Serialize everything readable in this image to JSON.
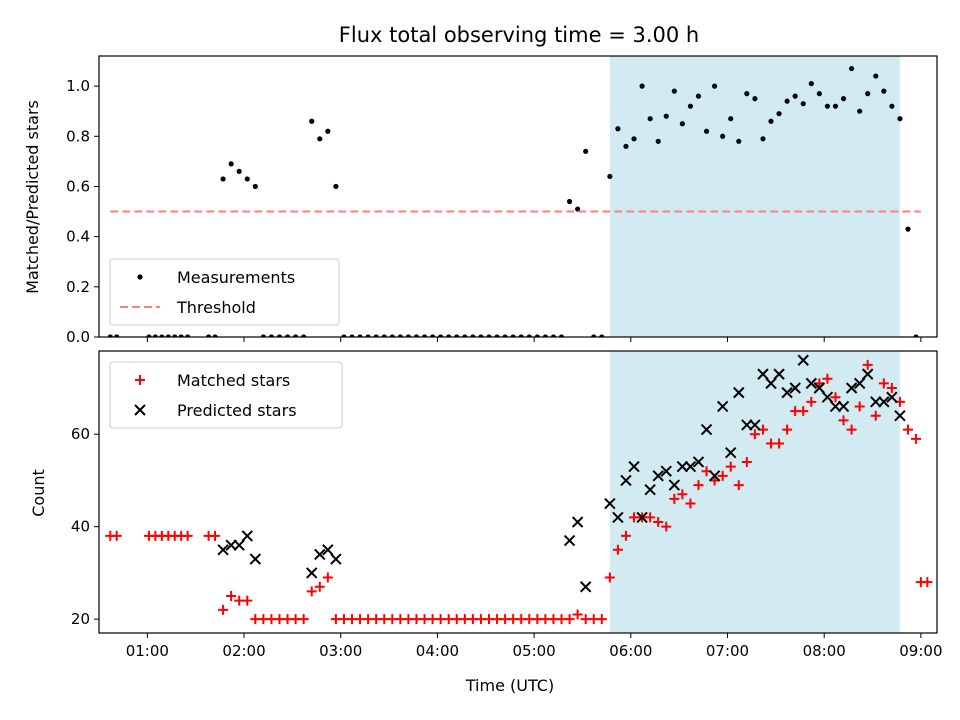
{
  "chart_data": [
    {
      "type": "scatter",
      "title": "Flux total observing time = 3.00 h",
      "xlabel": "",
      "ylabel": "Matched/Predicted stars",
      "ylim": [
        0,
        1.12
      ],
      "xlim": [
        "00:30",
        "09:10"
      ],
      "y_ticks": [
        "0.0",
        "0.2",
        "0.4",
        "0.6",
        "0.8",
        "1.0"
      ],
      "shaded_region": {
        "start": "05:47",
        "end": "08:47",
        "color": "#add8e6"
      },
      "legend_position": "lower-left",
      "series": [
        {
          "name": "Measurements",
          "marker": "dot",
          "color": "#000000",
          "points": [
            [
              "00:37",
              0.0
            ],
            [
              "00:41",
              0.0
            ],
            [
              "01:01",
              0.0
            ],
            [
              "01:05",
              0.0
            ],
            [
              "01:09",
              0.0
            ],
            [
              "01:13",
              0.0
            ],
            [
              "01:17",
              0.0
            ],
            [
              "01:21",
              0.0
            ],
            [
              "01:25",
              0.0
            ],
            [
              "01:38",
              0.0
            ],
            [
              "01:42",
              0.0
            ],
            [
              "01:47",
              0.63
            ],
            [
              "01:52",
              0.69
            ],
            [
              "01:57",
              0.66
            ],
            [
              "02:02",
              0.63
            ],
            [
              "02:07",
              0.6
            ],
            [
              "02:12",
              0.0
            ],
            [
              "02:17",
              0.0
            ],
            [
              "02:22",
              0.0
            ],
            [
              "02:27",
              0.0
            ],
            [
              "02:32",
              0.0
            ],
            [
              "02:37",
              0.0
            ],
            [
              "02:42",
              0.86
            ],
            [
              "02:47",
              0.79
            ],
            [
              "02:52",
              0.82
            ],
            [
              "02:57",
              0.6
            ],
            [
              "03:02",
              0.0
            ],
            [
              "03:07",
              0.0
            ],
            [
              "03:12",
              0.0
            ],
            [
              "03:17",
              0.0
            ],
            [
              "03:22",
              0.0
            ],
            [
              "03:27",
              0.0
            ],
            [
              "03:32",
              0.0
            ],
            [
              "03:37",
              0.0
            ],
            [
              "03:42",
              0.0
            ],
            [
              "03:47",
              0.0
            ],
            [
              "03:52",
              0.0
            ],
            [
              "03:57",
              0.0
            ],
            [
              "04:02",
              0.0
            ],
            [
              "04:07",
              0.0
            ],
            [
              "04:12",
              0.0
            ],
            [
              "04:17",
              0.0
            ],
            [
              "04:22",
              0.0
            ],
            [
              "04:27",
              0.0
            ],
            [
              "04:32",
              0.0
            ],
            [
              "04:37",
              0.0
            ],
            [
              "04:42",
              0.0
            ],
            [
              "04:47",
              0.0
            ],
            [
              "04:52",
              0.0
            ],
            [
              "04:57",
              0.0
            ],
            [
              "05:02",
              0.0
            ],
            [
              "05:07",
              0.0
            ],
            [
              "05:12",
              0.0
            ],
            [
              "05:17",
              0.0
            ],
            [
              "05:22",
              0.54
            ],
            [
              "05:27",
              0.51
            ],
            [
              "05:32",
              0.74
            ],
            [
              "05:37",
              0.0
            ],
            [
              "05:42",
              0.0
            ],
            [
              "05:47",
              0.64
            ],
            [
              "05:52",
              0.83
            ],
            [
              "05:57",
              0.76
            ],
            [
              "06:02",
              0.79
            ],
            [
              "06:07",
              1.0
            ],
            [
              "06:12",
              0.87
            ],
            [
              "06:17",
              0.78
            ],
            [
              "06:22",
              0.88
            ],
            [
              "06:27",
              0.98
            ],
            [
              "06:32",
              0.85
            ],
            [
              "06:37",
              0.92
            ],
            [
              "06:42",
              0.96
            ],
            [
              "06:47",
              0.82
            ],
            [
              "06:52",
              1.0
            ],
            [
              "06:57",
              0.8
            ],
            [
              "07:02",
              0.87
            ],
            [
              "07:07",
              0.78
            ],
            [
              "07:12",
              0.97
            ],
            [
              "07:17",
              0.95
            ],
            [
              "07:22",
              0.79
            ],
            [
              "07:27",
              0.86
            ],
            [
              "07:32",
              0.89
            ],
            [
              "07:37",
              0.94
            ],
            [
              "07:42",
              0.96
            ],
            [
              "07:47",
              0.93
            ],
            [
              "07:52",
              1.01
            ],
            [
              "07:57",
              0.97
            ],
            [
              "08:02",
              0.92
            ],
            [
              "08:07",
              0.92
            ],
            [
              "08:12",
              0.95
            ],
            [
              "08:17",
              1.07
            ],
            [
              "08:22",
              0.9
            ],
            [
              "08:27",
              0.97
            ],
            [
              "08:32",
              1.04
            ],
            [
              "08:37",
              0.98
            ],
            [
              "08:42",
              0.92
            ],
            [
              "08:47",
              0.87
            ],
            [
              "08:52",
              0.43
            ],
            [
              "08:57",
              0.0
            ]
          ]
        },
        {
          "name": "Threshold",
          "marker": "dashed-line",
          "color": "#ff7f7f",
          "points": [
            [
              "00:37",
              0.5
            ],
            [
              "09:00",
              0.5
            ]
          ]
        }
      ]
    },
    {
      "type": "scatter",
      "title": "",
      "xlabel": "Time (UTC)",
      "ylabel": "Count",
      "ylim": [
        17,
        78
      ],
      "xlim": [
        "00:30",
        "09:10"
      ],
      "x_ticks": [
        "01:00",
        "02:00",
        "03:00",
        "04:00",
        "05:00",
        "06:00",
        "07:00",
        "08:00",
        "09:00"
      ],
      "y_ticks": [
        "20",
        "40",
        "60"
      ],
      "shaded_region": {
        "start": "05:47",
        "end": "08:47",
        "color": "#add8e6"
      },
      "legend_position": "top-left",
      "series": [
        {
          "name": "Matched stars",
          "marker": "plus",
          "color": "#ff0000",
          "points": [
            [
              "00:37",
              38
            ],
            [
              "00:41",
              38
            ],
            [
              "01:01",
              38
            ],
            [
              "01:05",
              38
            ],
            [
              "01:09",
              38
            ],
            [
              "01:13",
              38
            ],
            [
              "01:17",
              38
            ],
            [
              "01:21",
              38
            ],
            [
              "01:25",
              38
            ],
            [
              "01:38",
              38
            ],
            [
              "01:42",
              38
            ],
            [
              "01:47",
              22
            ],
            [
              "01:52",
              25
            ],
            [
              "01:57",
              24
            ],
            [
              "02:02",
              24
            ],
            [
              "02:07",
              20
            ],
            [
              "02:12",
              20
            ],
            [
              "02:17",
              20
            ],
            [
              "02:22",
              20
            ],
            [
              "02:27",
              20
            ],
            [
              "02:32",
              20
            ],
            [
              "02:37",
              20
            ],
            [
              "02:42",
              26
            ],
            [
              "02:47",
              27
            ],
            [
              "02:52",
              29
            ],
            [
              "02:57",
              20
            ],
            [
              "03:02",
              20
            ],
            [
              "03:07",
              20
            ],
            [
              "03:12",
              20
            ],
            [
              "03:17",
              20
            ],
            [
              "03:22",
              20
            ],
            [
              "03:27",
              20
            ],
            [
              "03:32",
              20
            ],
            [
              "03:37",
              20
            ],
            [
              "03:42",
              20
            ],
            [
              "03:47",
              20
            ],
            [
              "03:52",
              20
            ],
            [
              "03:57",
              20
            ],
            [
              "04:02",
              20
            ],
            [
              "04:07",
              20
            ],
            [
              "04:12",
              20
            ],
            [
              "04:17",
              20
            ],
            [
              "04:22",
              20
            ],
            [
              "04:27",
              20
            ],
            [
              "04:32",
              20
            ],
            [
              "04:37",
              20
            ],
            [
              "04:42",
              20
            ],
            [
              "04:47",
              20
            ],
            [
              "04:52",
              20
            ],
            [
              "04:57",
              20
            ],
            [
              "05:02",
              20
            ],
            [
              "05:07",
              20
            ],
            [
              "05:12",
              20
            ],
            [
              "05:17",
              20
            ],
            [
              "05:22",
              20
            ],
            [
              "05:27",
              21
            ],
            [
              "05:32",
              20
            ],
            [
              "05:37",
              20
            ],
            [
              "05:42",
              20
            ],
            [
              "05:47",
              29
            ],
            [
              "05:52",
              35
            ],
            [
              "05:57",
              38
            ],
            [
              "06:02",
              42
            ],
            [
              "06:07",
              42
            ],
            [
              "06:12",
              42
            ],
            [
              "06:17",
              41
            ],
            [
              "06:22",
              40
            ],
            [
              "06:27",
              46
            ],
            [
              "06:32",
              47
            ],
            [
              "06:37",
              45
            ],
            [
              "06:42",
              49
            ],
            [
              "06:47",
              52
            ],
            [
              "06:52",
              50
            ],
            [
              "06:57",
              51
            ],
            [
              "07:02",
              53
            ],
            [
              "07:07",
              49
            ],
            [
              "07:12",
              54
            ],
            [
              "07:17",
              60
            ],
            [
              "07:22",
              61
            ],
            [
              "07:27",
              58
            ],
            [
              "07:32",
              58
            ],
            [
              "07:37",
              61
            ],
            [
              "07:42",
              65
            ],
            [
              "07:47",
              65
            ],
            [
              "07:52",
              67
            ],
            [
              "07:57",
              71
            ],
            [
              "08:02",
              72
            ],
            [
              "08:07",
              68
            ],
            [
              "08:12",
              63
            ],
            [
              "08:17",
              61
            ],
            [
              "08:22",
              66
            ],
            [
              "08:27",
              75
            ],
            [
              "08:32",
              64
            ],
            [
              "08:37",
              71
            ],
            [
              "08:42",
              70
            ],
            [
              "08:47",
              67
            ],
            [
              "08:52",
              61
            ],
            [
              "08:57",
              59
            ],
            [
              "09:00",
              28
            ],
            [
              "09:04",
              28
            ]
          ]
        },
        {
          "name": "Predicted stars",
          "marker": "x",
          "color": "#000000",
          "points": [
            [
              "01:47",
              35
            ],
            [
              "01:52",
              36
            ],
            [
              "01:57",
              36
            ],
            [
              "02:02",
              38
            ],
            [
              "02:07",
              33
            ],
            [
              "02:42",
              30
            ],
            [
              "02:47",
              34
            ],
            [
              "02:52",
              35
            ],
            [
              "02:57",
              33
            ],
            [
              "05:22",
              37
            ],
            [
              "05:27",
              41
            ],
            [
              "05:32",
              27
            ],
            [
              "05:47",
              45
            ],
            [
              "05:52",
              42
            ],
            [
              "05:57",
              50
            ],
            [
              "06:02",
              53
            ],
            [
              "06:07",
              42
            ],
            [
              "06:12",
              48
            ],
            [
              "06:17",
              51
            ],
            [
              "06:22",
              52
            ],
            [
              "06:27",
              49
            ],
            [
              "06:32",
              53
            ],
            [
              "06:37",
              53
            ],
            [
              "06:42",
              54
            ],
            [
              "06:47",
              61
            ],
            [
              "06:52",
              51
            ],
            [
              "06:57",
              66
            ],
            [
              "07:02",
              56
            ],
            [
              "07:07",
              69
            ],
            [
              "07:12",
              62
            ],
            [
              "07:17",
              62
            ],
            [
              "07:22",
              73
            ],
            [
              "07:27",
              71
            ],
            [
              "07:32",
              73
            ],
            [
              "07:37",
              69
            ],
            [
              "07:42",
              70
            ],
            [
              "07:47",
              76
            ],
            [
              "07:52",
              71
            ],
            [
              "07:57",
              70
            ],
            [
              "08:02",
              68
            ],
            [
              "08:07",
              66
            ],
            [
              "08:12",
              66
            ],
            [
              "08:17",
              70
            ],
            [
              "08:22",
              71
            ],
            [
              "08:27",
              73
            ],
            [
              "08:32",
              67
            ],
            [
              "08:37",
              67
            ],
            [
              "08:42",
              68
            ],
            [
              "08:47",
              64
            ]
          ]
        }
      ]
    }
  ]
}
